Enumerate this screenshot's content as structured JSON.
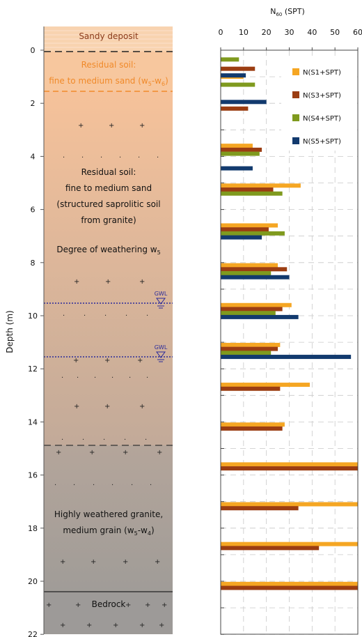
{
  "y_axis_label": "Depth (m)",
  "depth_ticks": [
    0,
    2,
    4,
    6,
    8,
    10,
    12,
    14,
    16,
    18,
    20,
    22
  ],
  "log_layers": [
    {
      "name": "Sandy deposit",
      "top_m": -0.9,
      "bottom_m": 0,
      "fill": "#f8d3b0"
    },
    {
      "name": "Residual soil w5-w6",
      "top_m": 0,
      "bottom_m": 1.5,
      "fill": "#f7c79e"
    },
    {
      "name": "Residual soil w5",
      "top_m": 1.5,
      "bottom_m": 14.85,
      "fill_top": "#f6c29a",
      "fill_bottom": "#c4aa98"
    },
    {
      "name": "Highly weathered granite",
      "top_m": 14.85,
      "bottom_m": 20.3,
      "fill_top": "#b2a39a",
      "fill_bottom": "#a19c98"
    },
    {
      "name": "Bedrock",
      "top_m": 20.3,
      "bottom_m": 22,
      "fill": "#9b9998"
    }
  ],
  "log_labels": {
    "sandy": "Sandy deposit",
    "residual1_title": "Residual soil:",
    "residual1_desc": "fine to medium sand (w",
    "residual1_sub_a": "5",
    "residual1_mid": "-w",
    "residual1_sub_b": "6",
    "residual1_end": ")",
    "residual2_l1": "Residual soil:",
    "residual2_l2": "fine to medium sand",
    "residual2_l3": "(structured saprolitic soil",
    "residual2_l4": "from granite)",
    "weathering_pre": "Degree of weathering w",
    "weathering_sub": "5",
    "granite_l1": "Highly weathered granite,",
    "granite_l2_pre": "medium grain (w",
    "granite_l2_sub_a": "5",
    "granite_l2_mid": "-w",
    "granite_l2_sub_b": "4",
    "granite_l2_end": ")",
    "bedrock": "Bedrock"
  },
  "gwl": {
    "label": "GWL",
    "depths_m": [
      9.5,
      11.5
    ],
    "color": "#2a2a9a"
  },
  "colors": {
    "s1": "#f5a623",
    "s3": "#9b3d12",
    "s4": "#7f9a1e",
    "s5": "#123a6e",
    "residual_title": "#f08a2a",
    "dash_orange": "#f08a2a"
  },
  "chart_data": {
    "type": "bar",
    "orientation": "horizontal",
    "title_pre": "N",
    "title_sub": "60",
    "title_post": " (SPT)",
    "xlim": [
      0,
      60
    ],
    "xticks": [
      0,
      10,
      20,
      30,
      40,
      50,
      60
    ],
    "ylim": [
      0,
      22
    ],
    "legend_position": "top-right",
    "series": [
      {
        "name": "N(S1+SPT)",
        "color": "#f5a623",
        "points": [
          {
            "depth": 1.0,
            "value": 10
          },
          {
            "depth": 3.6,
            "value": 14
          },
          {
            "depth": 5.1,
            "value": 35
          },
          {
            "depth": 6.6,
            "value": 25
          },
          {
            "depth": 8.1,
            "value": 25
          },
          {
            "depth": 9.6,
            "value": 31
          },
          {
            "depth": 11.1,
            "value": 26
          },
          {
            "depth": 12.6,
            "value": 39
          },
          {
            "depth": 14.1,
            "value": 28
          },
          {
            "depth": 15.6,
            "value": 61
          },
          {
            "depth": 17.1,
            "value": 61
          },
          {
            "depth": 18.6,
            "value": 61
          },
          {
            "depth": 20.1,
            "value": 61
          }
        ]
      },
      {
        "name": "N(S3+SPT)",
        "color": "#9b3d12",
        "points": [
          {
            "depth": 0.7,
            "value": 15
          },
          {
            "depth": 2.2,
            "value": 12
          },
          {
            "depth": 3.75,
            "value": 18
          },
          {
            "depth": 5.25,
            "value": 23
          },
          {
            "depth": 6.75,
            "value": 21
          },
          {
            "depth": 8.25,
            "value": 29
          },
          {
            "depth": 9.75,
            "value": 27
          },
          {
            "depth": 11.25,
            "value": 25
          },
          {
            "depth": 12.75,
            "value": 26
          },
          {
            "depth": 14.25,
            "value": 27
          },
          {
            "depth": 15.75,
            "value": 61
          },
          {
            "depth": 17.25,
            "value": 34
          },
          {
            "depth": 18.75,
            "value": 43
          },
          {
            "depth": 20.25,
            "value": 61
          }
        ]
      },
      {
        "name": "N(S4+SPT)",
        "color": "#7f9a1e",
        "points": [
          {
            "depth": 0.35,
            "value": 8
          },
          {
            "depth": 1.3,
            "value": 15
          },
          {
            "depth": 3.9,
            "value": 17
          },
          {
            "depth": 5.4,
            "value": 27
          },
          {
            "depth": 6.9,
            "value": 28
          },
          {
            "depth": 8.4,
            "value": 22
          },
          {
            "depth": 9.9,
            "value": 24
          },
          {
            "depth": 11.4,
            "value": 22
          }
        ]
      },
      {
        "name": "N(S5+SPT)",
        "color": "#123a6e",
        "points": [
          {
            "depth": 0.95,
            "value": 11
          },
          {
            "depth": 1.95,
            "value": 20
          },
          {
            "depth": 4.45,
            "value": 14
          },
          {
            "depth": 7.05,
            "value": 18
          },
          {
            "depth": 8.55,
            "value": 30
          },
          {
            "depth": 10.05,
            "value": 34
          },
          {
            "depth": 11.55,
            "value": 57
          }
        ]
      }
    ]
  }
}
